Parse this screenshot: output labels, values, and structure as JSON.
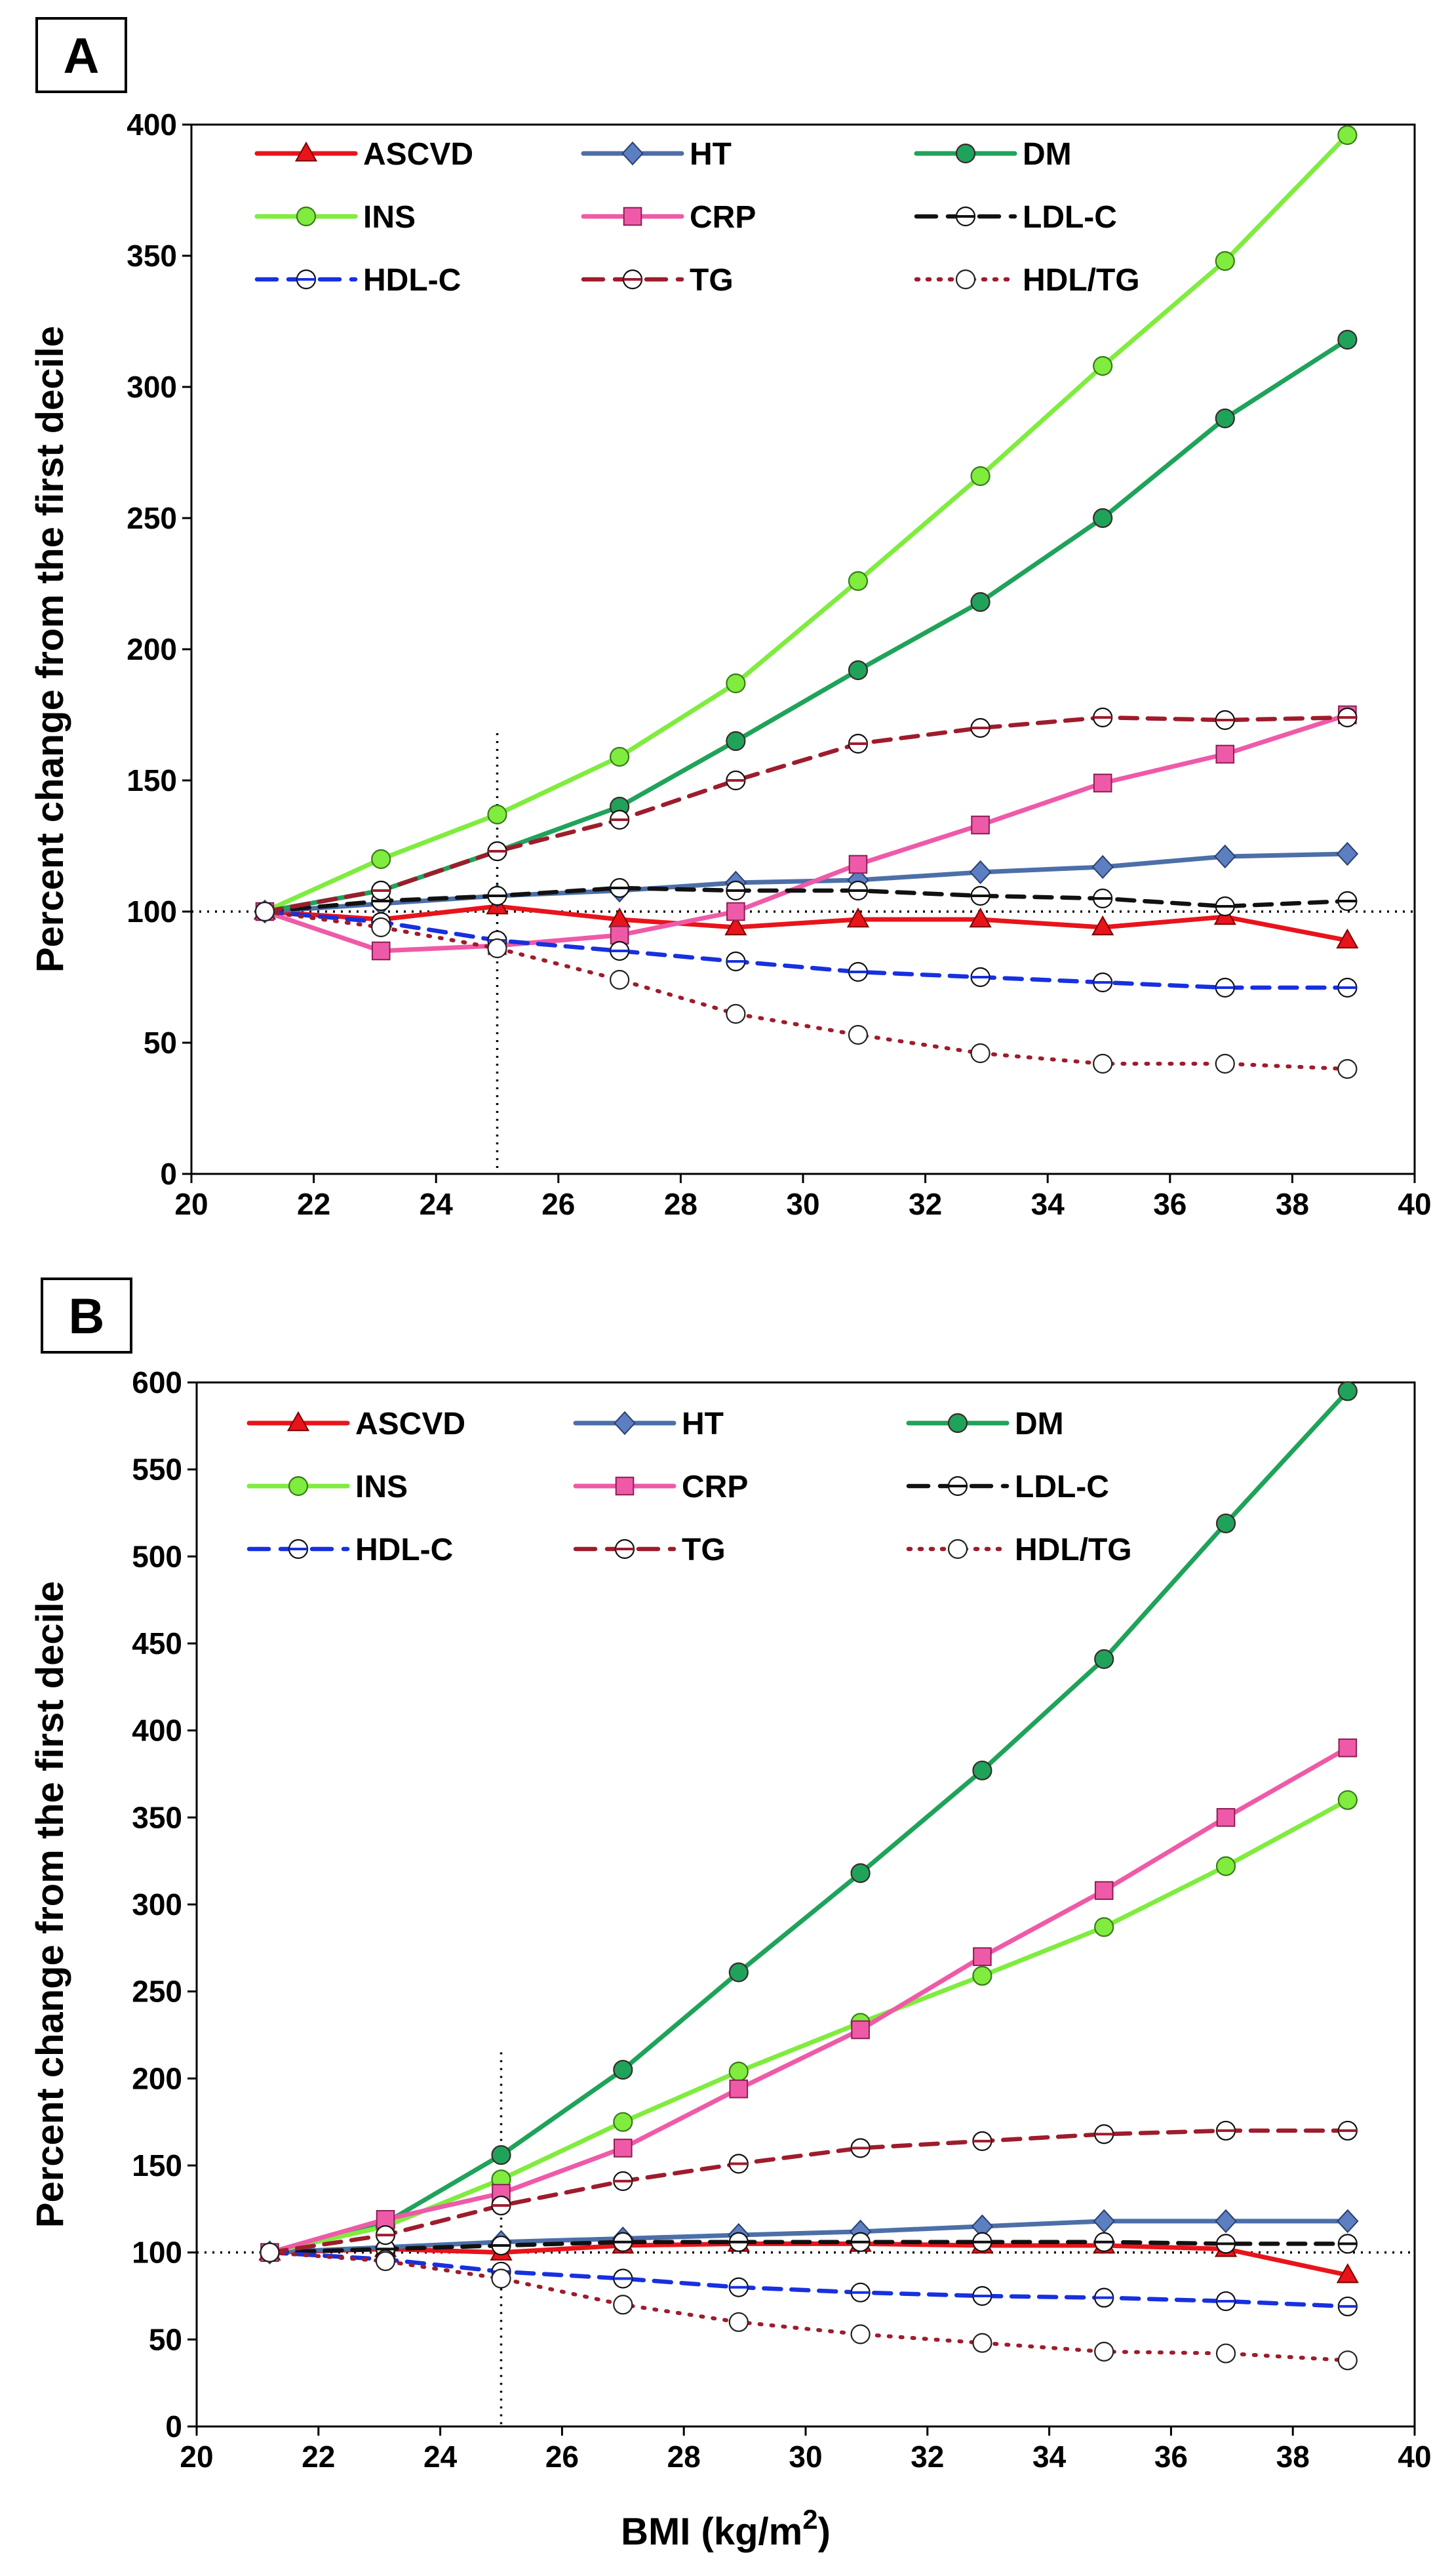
{
  "figure": {
    "x_axis_title": "BMI (kg/m",
    "x_axis_title_sup": "2",
    "x_axis_title_end": ")"
  },
  "series_styles": {
    "ASCVD": {
      "color": "#e8141b",
      "dash": "solid",
      "marker": "triangle",
      "fill": "#e8141b"
    },
    "HT": {
      "color": "#4d6fa8",
      "dash": "solid",
      "marker": "diamond",
      "fill": "#5b7fc0"
    },
    "DM": {
      "color": "#1fa35a",
      "dash": "solid",
      "marker": "circle",
      "fill": "#1fa35a"
    },
    "INS": {
      "color": "#7fec3e",
      "dash": "solid",
      "marker": "circle",
      "fill": "#7fec3e"
    },
    "CRP": {
      "color": "#ef5aa8",
      "dash": "solid",
      "marker": "square",
      "fill": "#ef5aa8"
    },
    "LDL-C": {
      "color": "#111111",
      "dash": "dashed",
      "marker": "halfcircle",
      "fill": "#ffffff"
    },
    "HDL-C": {
      "color": "#1730e0",
      "dash": "dashed",
      "marker": "halfcircle",
      "fill": "#ffffff"
    },
    "TG": {
      "color": "#9e1c2c",
      "dash": "dashed",
      "marker": "halfcircle",
      "fill": "#ffffff"
    },
    "HDL/TG": {
      "color": "#9e1c2c",
      "dash": "dotted",
      "marker": "circle",
      "fill": "#ffffff"
    }
  },
  "chart_data": [
    {
      "panel": "A",
      "type": "line",
      "ylabel": "Percent change from the first decile",
      "xlabel": "BMI (kg/m2)",
      "xlim": [
        20,
        40
      ],
      "ylim": [
        0,
        400
      ],
      "xticks": [
        "20",
        "22",
        "24",
        "26",
        "28",
        "30",
        "32",
        "34",
        "36",
        "38",
        "40"
      ],
      "yticks": [
        "0",
        "50",
        "100",
        "150",
        "200",
        "250",
        "300",
        "350",
        "400"
      ],
      "ref_hline": 100,
      "ref_vline": 25,
      "ref_vline_top": 168,
      "x": [
        21.2,
        23.1,
        25.0,
        27.0,
        28.9,
        30.9,
        32.9,
        34.9,
        36.9,
        38.9
      ],
      "series": [
        {
          "name": "ASCVD",
          "values": [
            100,
            97,
            102,
            97,
            94,
            97,
            97,
            94,
            98,
            89
          ]
        },
        {
          "name": "HT",
          "values": [
            100,
            103,
            106,
            108,
            111,
            112,
            115,
            117,
            121,
            122
          ]
        },
        {
          "name": "DM",
          "values": [
            100,
            108,
            123,
            140,
            165,
            192,
            218,
            250,
            288,
            318
          ]
        },
        {
          "name": "INS",
          "values": [
            100,
            120,
            137,
            159,
            187,
            226,
            266,
            308,
            348,
            396
          ]
        },
        {
          "name": "CRP",
          "values": [
            100,
            85,
            87,
            91,
            100,
            118,
            133,
            149,
            160,
            175
          ]
        },
        {
          "name": "LDL-C",
          "values": [
            100,
            104,
            106,
            109,
            108,
            108,
            106,
            105,
            102,
            104
          ]
        },
        {
          "name": "HDL-C",
          "values": [
            100,
            96,
            89,
            85,
            81,
            77,
            75,
            73,
            71,
            71
          ]
        },
        {
          "name": "TG",
          "values": [
            100,
            108,
            123,
            135,
            150,
            164,
            170,
            174,
            173,
            174
          ]
        },
        {
          "name": "HDL/TG",
          "values": [
            100,
            94,
            86,
            74,
            61,
            53,
            46,
            42,
            42,
            40
          ]
        }
      ]
    },
    {
      "panel": "B",
      "type": "line",
      "ylabel": "Percent change from the first decile",
      "xlabel": "BMI (kg/m2)",
      "xlim": [
        20,
        40
      ],
      "ylim": [
        0,
        600
      ],
      "xticks": [
        "20",
        "22",
        "24",
        "26",
        "28",
        "30",
        "32",
        "34",
        "36",
        "38",
        "40"
      ],
      "yticks": [
        "0",
        "50",
        "100",
        "150",
        "200",
        "250",
        "300",
        "350",
        "400",
        "450",
        "500",
        "550",
        "600"
      ],
      "ref_hline": 100,
      "ref_vline": 25,
      "ref_vline_top": 215,
      "x": [
        21.2,
        23.1,
        25.0,
        27.0,
        28.9,
        30.9,
        32.9,
        34.9,
        36.9,
        38.9
      ],
      "series": [
        {
          "name": "ASCVD",
          "values": [
            100,
            102,
            100,
            104,
            105,
            105,
            104,
            104,
            102,
            87
          ]
        },
        {
          "name": "HT",
          "values": [
            100,
            103,
            106,
            108,
            110,
            112,
            115,
            118,
            118,
            118
          ]
        },
        {
          "name": "DM",
          "values": [
            100,
            117,
            156,
            205,
            261,
            318,
            377,
            441,
            519,
            595
          ]
        },
        {
          "name": "INS",
          "values": [
            100,
            115,
            142,
            175,
            204,
            232,
            259,
            287,
            322,
            360
          ]
        },
        {
          "name": "CRP",
          "values": [
            100,
            119,
            134,
            160,
            194,
            228,
            270,
            308,
            350,
            390
          ]
        },
        {
          "name": "LDL-C",
          "values": [
            100,
            102,
            104,
            106,
            106,
            106,
            106,
            106,
            105,
            105
          ]
        },
        {
          "name": "HDL-C",
          "values": [
            100,
            96,
            89,
            85,
            80,
            77,
            75,
            74,
            72,
            69
          ]
        },
        {
          "name": "TG",
          "values": [
            100,
            110,
            127,
            141,
            151,
            160,
            164,
            168,
            170,
            170
          ]
        },
        {
          "name": "HDL/TG",
          "values": [
            100,
            95,
            85,
            70,
            60,
            53,
            48,
            43,
            42,
            38
          ]
        }
      ]
    }
  ]
}
